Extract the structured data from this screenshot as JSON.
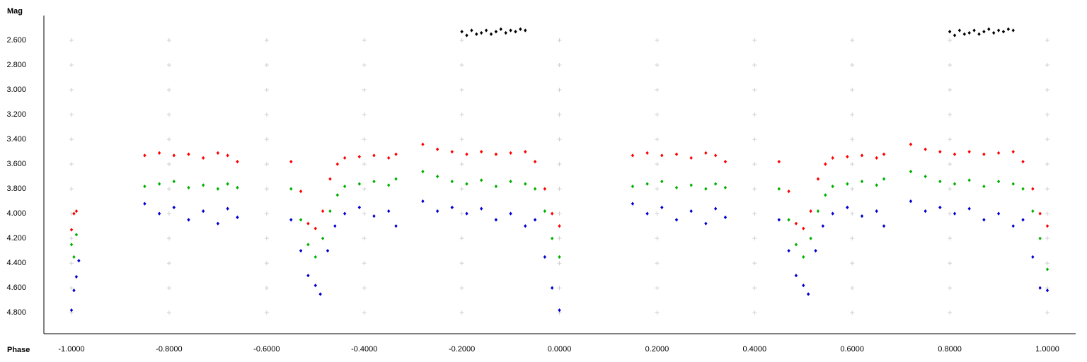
{
  "chart_data": {
    "type": "scatter",
    "y_label": "Mag",
    "x_label": "Phase",
    "xlim": [
      -1.0566,
      1.058
    ],
    "ylim": [
      4.97,
      2.4
    ],
    "grid": "crosses",
    "xticks": [
      {
        "value": -1.0,
        "label": "-1.0000"
      },
      {
        "value": -0.8,
        "label": "-0.8000"
      },
      {
        "value": -0.6,
        "label": "-0.6000"
      },
      {
        "value": -0.4,
        "label": "-0.4000"
      },
      {
        "value": -0.2,
        "label": "-0.2000"
      },
      {
        "value": 0,
        "label": "0.0000"
      },
      {
        "value": 0.2,
        "label": "0.2000"
      },
      {
        "value": 0.4,
        "label": "0.4000"
      },
      {
        "value": 0.6,
        "label": "0.6000"
      },
      {
        "value": 0.8,
        "label": "0.8000"
      },
      {
        "value": 1.0,
        "label": "1.0000"
      }
    ],
    "yticks": [
      {
        "value": 2.6,
        "label": "2.600"
      },
      {
        "value": 2.8,
        "label": "2.800"
      },
      {
        "value": 3.0,
        "label": "3.000"
      },
      {
        "value": 3.2,
        "label": "3.200"
      },
      {
        "value": 3.4,
        "label": "3.400"
      },
      {
        "value": 3.6,
        "label": "3.600"
      },
      {
        "value": 3.8,
        "label": "3.800"
      },
      {
        "value": 4.0,
        "label": "4.000"
      },
      {
        "value": 4.2,
        "label": "4.200"
      },
      {
        "value": 4.4,
        "label": "4.400"
      },
      {
        "value": 4.6,
        "label": "4.600"
      },
      {
        "value": 4.8,
        "label": "4.800"
      }
    ],
    "series": [
      {
        "color": "#000000",
        "x": [
          -0.2,
          -0.19,
          -0.18,
          -0.17,
          -0.16,
          -0.15,
          -0.14,
          -0.13,
          -0.12,
          -0.11,
          -0.1,
          -0.09,
          -0.08,
          -0.07,
          0.8,
          0.81,
          0.82,
          0.83,
          0.84,
          0.85,
          0.86,
          0.87,
          0.88,
          0.89,
          0.9,
          0.91,
          0.92,
          0.93
        ],
        "values": [
          2.53,
          2.56,
          2.52,
          2.55,
          2.54,
          2.52,
          2.55,
          2.53,
          2.51,
          2.54,
          2.52,
          2.53,
          2.51,
          2.52,
          2.53,
          2.56,
          2.52,
          2.55,
          2.54,
          2.52,
          2.55,
          2.53,
          2.51,
          2.54,
          2.52,
          2.53,
          2.51,
          2.52
        ]
      },
      {
        "color": "#ff0000",
        "x": [
          -1.0,
          -0.995,
          -0.99,
          -0.85,
          -0.82,
          -0.79,
          -0.76,
          -0.73,
          -0.7,
          -0.68,
          -0.66,
          -0.55,
          -0.53,
          -0.515,
          -0.5,
          -0.485,
          -0.47,
          -0.455,
          -0.44,
          -0.41,
          -0.38,
          -0.35,
          -0.335,
          -0.28,
          -0.25,
          -0.22,
          -0.19,
          -0.16,
          -0.13,
          -0.1,
          -0.07,
          -0.05,
          -0.03,
          -0.015,
          0.0,
          0.15,
          0.18,
          0.21,
          0.24,
          0.27,
          0.3,
          0.32,
          0.34,
          0.45,
          0.47,
          0.485,
          0.5,
          0.515,
          0.53,
          0.545,
          0.56,
          0.59,
          0.62,
          0.65,
          0.665,
          0.72,
          0.75,
          0.78,
          0.81,
          0.84,
          0.87,
          0.9,
          0.93,
          0.95,
          0.97,
          0.985,
          1.0
        ],
        "values": [
          4.13,
          4.0,
          3.98,
          3.53,
          3.51,
          3.53,
          3.52,
          3.55,
          3.51,
          3.53,
          3.58,
          3.58,
          3.82,
          4.08,
          4.12,
          3.98,
          3.72,
          3.6,
          3.55,
          3.54,
          3.53,
          3.55,
          3.52,
          3.44,
          3.48,
          3.5,
          3.52,
          3.5,
          3.52,
          3.51,
          3.5,
          3.58,
          3.8,
          4.0,
          4.1,
          3.53,
          3.51,
          3.53,
          3.52,
          3.55,
          3.51,
          3.53,
          3.58,
          3.58,
          3.82,
          4.08,
          4.12,
          3.98,
          3.72,
          3.6,
          3.55,
          3.54,
          3.53,
          3.55,
          3.52,
          3.44,
          3.48,
          3.5,
          3.52,
          3.5,
          3.52,
          3.51,
          3.5,
          3.58,
          3.8,
          4.0,
          4.1
        ]
      },
      {
        "color": "#00b000",
        "x": [
          -1.0,
          -0.995,
          -0.99,
          -0.85,
          -0.82,
          -0.79,
          -0.76,
          -0.73,
          -0.7,
          -0.68,
          -0.66,
          -0.55,
          -0.53,
          -0.515,
          -0.5,
          -0.485,
          -0.47,
          -0.455,
          -0.44,
          -0.41,
          -0.38,
          -0.35,
          -0.335,
          -0.28,
          -0.25,
          -0.22,
          -0.19,
          -0.16,
          -0.13,
          -0.1,
          -0.07,
          -0.05,
          -0.03,
          -0.015,
          0.0,
          0.15,
          0.18,
          0.21,
          0.24,
          0.27,
          0.3,
          0.32,
          0.34,
          0.45,
          0.47,
          0.485,
          0.5,
          0.515,
          0.53,
          0.545,
          0.56,
          0.59,
          0.62,
          0.65,
          0.665,
          0.72,
          0.75,
          0.78,
          0.81,
          0.84,
          0.87,
          0.9,
          0.93,
          0.95,
          0.97,
          0.985,
          1.0
        ],
        "values": [
          4.25,
          4.35,
          4.17,
          3.78,
          3.76,
          3.74,
          3.79,
          3.77,
          3.8,
          3.76,
          3.79,
          3.8,
          4.05,
          4.25,
          4.35,
          4.2,
          3.98,
          3.85,
          3.78,
          3.76,
          3.74,
          3.77,
          3.72,
          3.66,
          3.7,
          3.74,
          3.76,
          3.73,
          3.78,
          3.74,
          3.76,
          3.8,
          3.98,
          4.2,
          4.35,
          3.78,
          3.76,
          3.74,
          3.79,
          3.77,
          3.8,
          3.76,
          3.79,
          3.8,
          4.05,
          4.25,
          4.35,
          4.2,
          3.98,
          3.85,
          3.78,
          3.76,
          3.74,
          3.77,
          3.72,
          3.66,
          3.7,
          3.74,
          3.76,
          3.73,
          3.78,
          3.74,
          3.76,
          3.8,
          3.98,
          4.2,
          4.45
        ]
      },
      {
        "color": "#0000d0",
        "x": [
          -1.0,
          -0.995,
          -0.99,
          -0.985,
          -0.85,
          -0.82,
          -0.79,
          -0.76,
          -0.73,
          -0.7,
          -0.68,
          -0.66,
          -0.55,
          -0.53,
          -0.515,
          -0.5,
          -0.49,
          -0.475,
          -0.46,
          -0.44,
          -0.41,
          -0.38,
          -0.35,
          -0.335,
          -0.28,
          -0.25,
          -0.22,
          -0.19,
          -0.16,
          -0.13,
          -0.1,
          -0.07,
          -0.05,
          -0.03,
          -0.015,
          0.0,
          0.15,
          0.18,
          0.21,
          0.24,
          0.27,
          0.3,
          0.32,
          0.34,
          0.45,
          0.47,
          0.485,
          0.5,
          0.51,
          0.525,
          0.54,
          0.56,
          0.59,
          0.62,
          0.65,
          0.665,
          0.72,
          0.75,
          0.78,
          0.81,
          0.84,
          0.87,
          0.9,
          0.93,
          0.95,
          0.97,
          0.985,
          1.0
        ],
        "values": [
          4.78,
          4.62,
          4.51,
          4.38,
          3.92,
          4.0,
          3.95,
          4.05,
          3.98,
          4.08,
          3.96,
          4.03,
          4.05,
          4.3,
          4.5,
          4.58,
          4.65,
          4.3,
          4.1,
          4.0,
          3.95,
          4.02,
          3.98,
          4.1,
          3.9,
          3.98,
          3.95,
          4.0,
          3.96,
          4.05,
          4.0,
          4.1,
          4.05,
          4.35,
          4.6,
          4.78,
          3.92,
          4.0,
          3.95,
          4.05,
          3.98,
          4.08,
          3.96,
          4.03,
          4.05,
          4.3,
          4.5,
          4.58,
          4.65,
          4.3,
          4.1,
          4.0,
          3.95,
          4.02,
          3.98,
          4.1,
          3.9,
          3.98,
          3.95,
          4.0,
          3.96,
          4.05,
          4.0,
          4.1,
          4.05,
          4.35,
          4.6,
          4.62
        ]
      }
    ]
  }
}
